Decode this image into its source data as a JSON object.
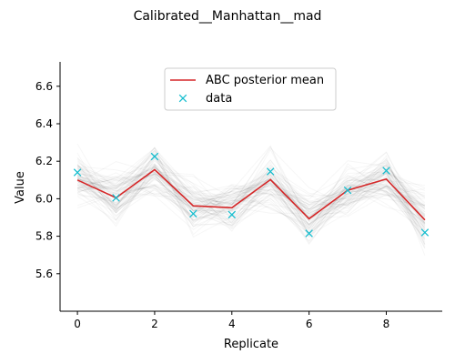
{
  "chart_data": {
    "type": "line",
    "title": "Calibrated__Manhattan__mad",
    "xlabel": "Replicate",
    "ylabel": "Value",
    "xlim": [
      -0.45,
      9.45
    ],
    "ylim": [
      5.4,
      6.73
    ],
    "xticks": [
      0,
      2,
      4,
      6,
      8
    ],
    "yticks": [
      5.6,
      5.8,
      6.0,
      6.2,
      6.4,
      6.6
    ],
    "x": [
      0,
      1,
      2,
      3,
      4,
      5,
      6,
      7,
      8,
      9
    ],
    "series": [
      {
        "name": "ABC posterior mean",
        "kind": "line",
        "color": "#d62728",
        "values": [
          6.1,
          6.005,
          6.155,
          5.962,
          5.952,
          6.102,
          5.893,
          6.045,
          6.105,
          5.887
        ]
      },
      {
        "name": "data",
        "kind": "marker",
        "marker": "x",
        "color": "#17becf",
        "values": [
          6.14,
          6.005,
          6.225,
          5.92,
          5.915,
          6.145,
          5.815,
          6.045,
          6.15,
          5.82
        ]
      }
    ],
    "posterior_samples": {
      "count": 80,
      "color": "#000000",
      "spread": [
        0.07,
        0.07,
        0.075,
        0.065,
        0.065,
        0.07,
        0.065,
        0.065,
        0.07,
        0.08
      ]
    },
    "legend": {
      "placement": "top-center",
      "entries": [
        "ABC posterior mean",
        "data"
      ]
    },
    "grid": false
  }
}
